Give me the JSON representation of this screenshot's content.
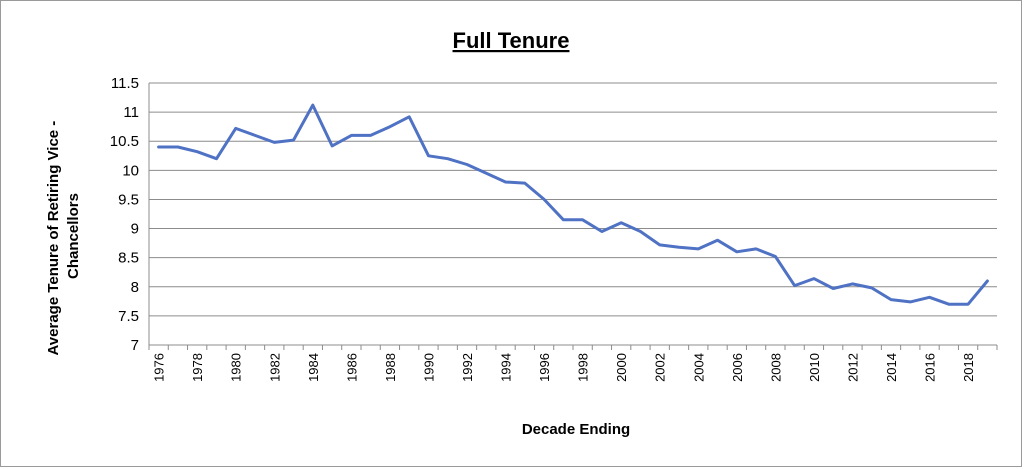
{
  "chart_data": {
    "type": "line",
    "title": "Full Tenure",
    "xlabel": "Decade Ending",
    "ylabel_lines": [
      "Average Tenure of Retiring Vice -",
      "Chancellors"
    ],
    "ylim": [
      7,
      11.5
    ],
    "yticks": [
      7,
      7.5,
      8,
      8.5,
      9,
      9.5,
      10,
      10.5,
      11,
      11.5
    ],
    "ytick_labels": [
      "7",
      "7.5",
      "8",
      "8.5",
      "9",
      "9.5",
      "10",
      "10.5",
      "11",
      "11.5"
    ],
    "xtick_labels": [
      "1976",
      "1978",
      "1980",
      "1982",
      "1984",
      "1986",
      "1988",
      "1990",
      "1992",
      "1994",
      "1996",
      "1998",
      "2000",
      "2002",
      "2004",
      "2006",
      "2008",
      "2010",
      "2012",
      "2014",
      "2016",
      "2018"
    ],
    "grid": true,
    "legend": "none",
    "series_color": "#4f72c4",
    "x": [
      1976,
      1977,
      1978,
      1979,
      1980,
      1981,
      1982,
      1983,
      1984,
      1985,
      1986,
      1987,
      1988,
      1989,
      1990,
      1991,
      1992,
      1993,
      1994,
      1995,
      1996,
      1997,
      1998,
      1999,
      2000,
      2001,
      2002,
      2003,
      2004,
      2005,
      2006,
      2007,
      2008,
      2009,
      2010,
      2011,
      2012,
      2013,
      2014,
      2015,
      2016,
      2017,
      2018,
      2019
    ],
    "values": [
      10.4,
      10.4,
      10.32,
      10.2,
      10.72,
      10.6,
      10.48,
      10.52,
      11.12,
      10.42,
      10.6,
      10.6,
      10.75,
      10.92,
      10.25,
      10.2,
      10.1,
      9.95,
      9.8,
      9.78,
      9.5,
      9.15,
      9.15,
      8.95,
      9.1,
      8.95,
      8.72,
      8.68,
      8.65,
      8.8,
      8.6,
      8.65,
      8.52,
      8.02,
      8.14,
      7.97,
      8.05,
      7.98,
      7.78,
      7.74,
      7.82,
      7.7,
      7.7,
      8.1
    ]
  }
}
